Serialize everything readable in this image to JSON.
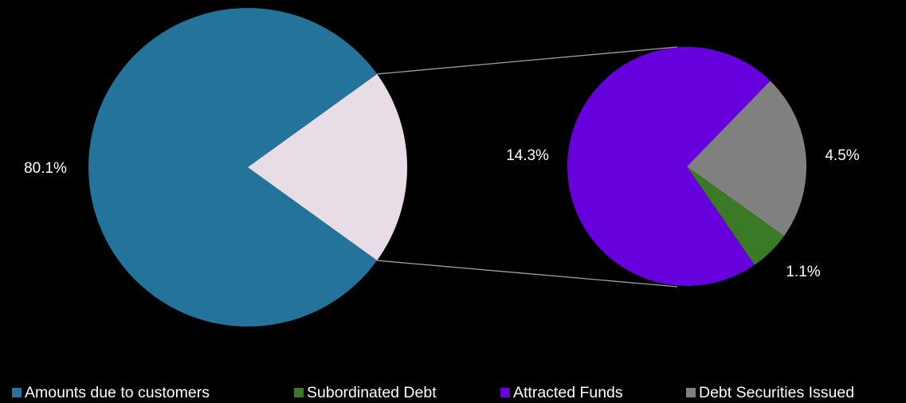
{
  "chart_data": {
    "type": "pie-of-pie",
    "categories": [
      "Amounts due to customers",
      "Subordinated Debt",
      "Attracted Funds",
      "Debt Securities Issued"
    ],
    "values": [
      80.1,
      1.1,
      14.3,
      4.5
    ],
    "value_labels": [
      "80.1%",
      "1.1%",
      "14.3%",
      "4.5%"
    ],
    "colors": [
      "#23739a",
      "#3a7a25",
      "#6600dd",
      "#808080"
    ],
    "legend": "bottom"
  }
}
